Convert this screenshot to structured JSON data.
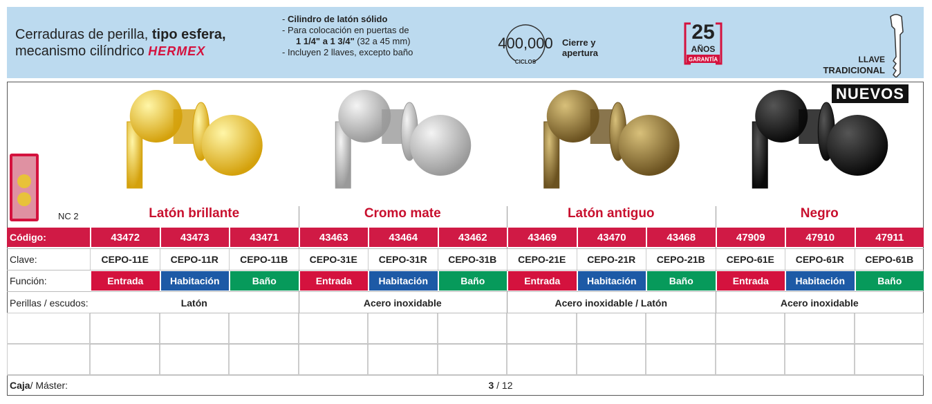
{
  "header": {
    "title_start": "Cerraduras de perilla,",
    "title_bold": "tipo esfera,",
    "title_line2": "mecanismo cilíndrico",
    "brand": "HERMEX",
    "bullets": [
      {
        "bold": "Cilindro de latón sólido"
      },
      {
        "text": "Para colocación en puertas de"
      },
      {
        "bold": "1 1/4\" a 1 3/4\"",
        "text": "(32 a 45 mm)"
      },
      {
        "text": "Incluyen 2 llaves, excepto baño"
      }
    ],
    "cycles": "400,000",
    "cycles_unit": "CICLOS",
    "cycles_text": [
      "Cierre y",
      "apertura"
    ],
    "warranty_years": "25",
    "warranty_unit": "AÑOS",
    "warranty_label": "GARANTÍA",
    "key_label": [
      "LLAVE",
      "TRADICIONAL"
    ]
  },
  "badge": "NUEVOS",
  "package_label": "NC 2",
  "row_labels": {
    "codigo": "Código:",
    "clave": "Clave:",
    "funcion": "Función:",
    "material": "Perillas / escudos:"
  },
  "groups": [
    {
      "name": "Latón brillante",
      "material": "Latón",
      "products": [
        {
          "codigo": "43472",
          "clave": "CEPO-11E",
          "funcion": {
            "label": "Entrada",
            "color": "#d4123e"
          }
        },
        {
          "codigo": "43473",
          "clave": "CEPO-11R",
          "funcion": {
            "label": "Habitación",
            "color": "#1d5aa6"
          }
        },
        {
          "codigo": "43471",
          "clave": "CEPO-11B",
          "funcion": {
            "label": "Baño",
            "color": "#079a5b"
          }
        }
      ]
    },
    {
      "name": "Cromo mate",
      "material": "Acero inoxidable",
      "products": [
        {
          "codigo": "43463",
          "clave": "CEPO-31E",
          "funcion": {
            "label": "Entrada",
            "color": "#d4123e"
          }
        },
        {
          "codigo": "43464",
          "clave": "CEPO-31R",
          "funcion": {
            "label": "Habitación",
            "color": "#1d5aa6"
          }
        },
        {
          "codigo": "43462",
          "clave": "CEPO-31B",
          "funcion": {
            "label": "Baño",
            "color": "#079a5b"
          }
        }
      ]
    },
    {
      "name": "Latón antiguo",
      "material": "Acero inoxidable / Latón",
      "products": [
        {
          "codigo": "43469",
          "clave": "CEPO-21E",
          "funcion": {
            "label": "Entrada",
            "color": "#d4123e"
          }
        },
        {
          "codigo": "43470",
          "clave": "CEPO-21R",
          "funcion": {
            "label": "Habitación",
            "color": "#1d5aa6"
          }
        },
        {
          "codigo": "43468",
          "clave": "CEPO-21B",
          "funcion": {
            "label": "Baño",
            "color": "#079a5b"
          }
        }
      ]
    },
    {
      "name": "Negro",
      "material": "Acero inoxidable",
      "products": [
        {
          "codigo": "47909",
          "clave": "CEPO-61E",
          "funcion": {
            "label": "Entrada",
            "color": "#d4123e"
          }
        },
        {
          "codigo": "47910",
          "clave": "CEPO-61R",
          "funcion": {
            "label": "Habitación",
            "color": "#1d5aa6"
          }
        },
        {
          "codigo": "47911",
          "clave": "CEPO-61B",
          "funcion": {
            "label": "Baño",
            "color": "#079a5b"
          }
        }
      ]
    }
  ],
  "footer": {
    "box_label": "Caja",
    "master_label": "/ Máster:",
    "box": "3",
    "master": "/ 12"
  }
}
